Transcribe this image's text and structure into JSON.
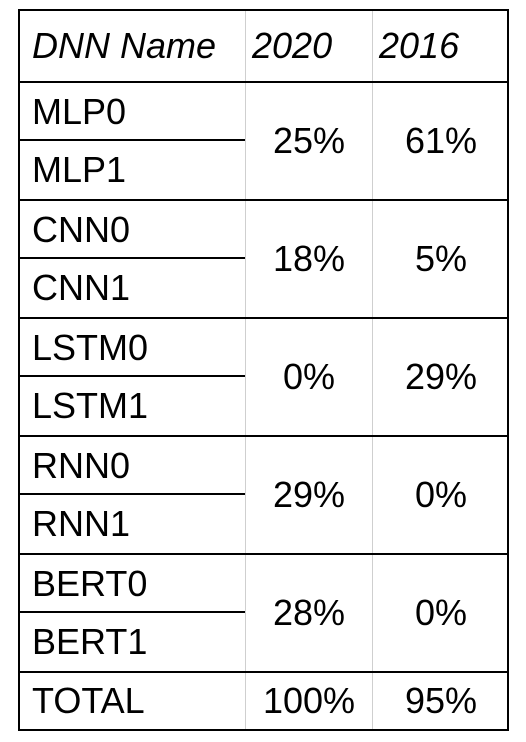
{
  "table": {
    "headers": [
      "DNN Name",
      "2020",
      "2016"
    ],
    "groups": [
      {
        "names": [
          "MLP0",
          "MLP1"
        ],
        "v2020": "25%",
        "v2016": "61%"
      },
      {
        "names": [
          "CNN0",
          "CNN1"
        ],
        "v2020": "18%",
        "v2016": "5%"
      },
      {
        "names": [
          "LSTM0",
          "LSTM1"
        ],
        "v2020": "0%",
        "v2016": "29%"
      },
      {
        "names": [
          "RNN0",
          "RNN1"
        ],
        "v2020": "29%",
        "v2016": "0%"
      },
      {
        "names": [
          "BERT0",
          "BERT1"
        ],
        "v2020": "28%",
        "v2016": "0%"
      }
    ],
    "total": {
      "label": "TOTAL",
      "v2020": "100%",
      "v2016": "95%"
    }
  }
}
